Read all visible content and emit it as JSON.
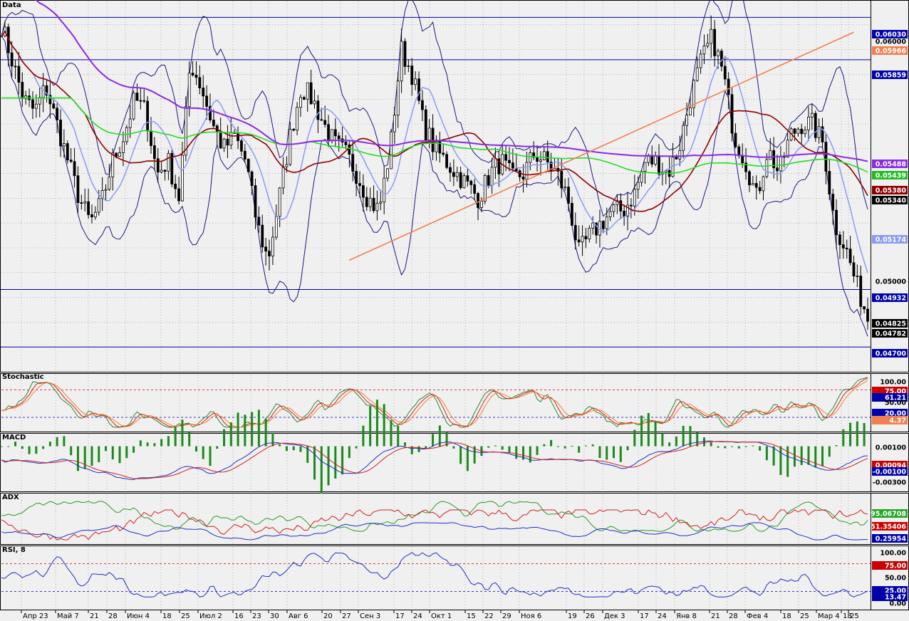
{
  "colors": {
    "background": "#f0f0f0",
    "candle": "#000000",
    "bollinger": "#1a1a7a",
    "ma_fast": "#8a9cf0",
    "ma_mid": "#8b0000",
    "ma_slow_green": "#22dd22",
    "ma_long_purple": "#8a2be2",
    "trendline": "#f08050",
    "hline": "#0000aa"
  },
  "chart_data": [
    {
      "pane": "price",
      "type": "candlestick",
      "title": "Data",
      "ylim": [
        0.046,
        0.061
      ],
      "y_ticks": [
        "0.06000",
        "0.05000"
      ],
      "horizontal_levels": [
        0.0603,
        0.05859,
        0.04932,
        0.047
      ],
      "price_tags": [
        {
          "label": "0.06030",
          "bg": "#0000aa",
          "fg": "#ffffff"
        },
        {
          "label": "0.06000",
          "bg": "",
          "fg": "#000000"
        },
        {
          "label": "0.05966",
          "bg": "#f08050",
          "fg": "#ffffff"
        },
        {
          "label": "0.05859",
          "bg": "#0000aa",
          "fg": "#ffffff"
        },
        {
          "label": "0.05488",
          "bg": "#8a2be2",
          "fg": "#ffffff"
        },
        {
          "label": "0.05439",
          "bg": "#22bb22",
          "fg": "#ffffff"
        },
        {
          "label": "0.05380",
          "bg": "#8b0000",
          "fg": "#ffffff"
        },
        {
          "label": "0.05340",
          "bg": "#000000",
          "fg": "#ffffff"
        },
        {
          "label": "0.05174",
          "bg": "#8a9cf0",
          "fg": "#ffffff"
        },
        {
          "label": "0.05000",
          "bg": "",
          "fg": "#000000"
        },
        {
          "label": "0.04932",
          "bg": "#0000aa",
          "fg": "#ffffff"
        },
        {
          "label": "0.04825",
          "bg": "#000000",
          "fg": "#ffffff"
        },
        {
          "label": "0.04782",
          "bg": "#000000",
          "fg": "#ffffff"
        },
        {
          "label": "0.04700",
          "bg": "#0000aa",
          "fg": "#ffffff"
        }
      ],
      "closes_anchor": [
        0.06,
        0.0585,
        0.057,
        0.0565,
        0.0575,
        0.056,
        0.0545,
        0.053,
        0.052,
        0.0528,
        0.0545,
        0.0555,
        0.057,
        0.0565,
        0.054,
        0.0545,
        0.053,
        0.0585,
        0.0575,
        0.056,
        0.055,
        0.0555,
        0.0545,
        0.052,
        0.0505,
        0.053,
        0.0555,
        0.0575,
        0.057,
        0.056,
        0.0552,
        0.0548,
        0.054,
        0.053,
        0.0525,
        0.055,
        0.059,
        0.058,
        0.056,
        0.055,
        0.0545,
        0.054,
        0.0535,
        0.053,
        0.054,
        0.0545,
        0.0538,
        0.054,
        0.0548,
        0.0545,
        0.054,
        0.053,
        0.0508,
        0.0515,
        0.052,
        0.0525,
        0.0525,
        0.0532,
        0.0545,
        0.0545,
        0.054,
        0.055,
        0.057,
        0.0585,
        0.0595,
        0.058,
        0.0555,
        0.0545,
        0.053,
        0.055,
        0.054,
        0.0555,
        0.056,
        0.056,
        0.0552,
        0.052,
        0.051,
        0.0495,
        0.0482
      ],
      "trendline": {
        "from": [
          0.0505,
          0.4
        ],
        "to": [
          0.0597,
          0.985
        ]
      }
    },
    {
      "pane": "stochastic",
      "type": "line",
      "title": "Stochastic",
      "ylim": [
        0,
        100
      ],
      "levels": [
        75,
        20
      ],
      "tags": [
        {
          "label": "100.00",
          "bg": "",
          "fg": "#000000"
        },
        {
          "label": "75.00",
          "bg": "#cc0000",
          "fg": "#ffffff"
        },
        {
          "label": "61.21",
          "bg": "#0000aa",
          "fg": "#ffffff"
        },
        {
          "label": "50.00",
          "bg": "",
          "fg": "#000000"
        },
        {
          "label": "20.00",
          "bg": "#0000aa",
          "fg": "#ffffff"
        },
        {
          "label": "4.37",
          "bg": "#f08050",
          "fg": "#ffffff"
        }
      ]
    },
    {
      "pane": "macd",
      "type": "line",
      "title": "MACD",
      "ylim": [
        -0.0035,
        0.0015
      ],
      "tags": [
        {
          "label": "0.00100",
          "bg": "",
          "fg": "#000000"
        },
        {
          "label": "0.00094",
          "bg": "#cc0000",
          "fg": "#ffffff"
        },
        {
          "label": "-0.00100",
          "bg": "#0000aa",
          "fg": "#ffffff"
        },
        {
          "label": "-0.00300",
          "bg": "",
          "fg": "#000000"
        }
      ]
    },
    {
      "pane": "adx",
      "type": "line",
      "title": "ADX",
      "ylim": [
        0,
        100
      ],
      "tags": [
        {
          "label": "95.06708",
          "bg": "#22aa22",
          "fg": "#ffffff"
        },
        {
          "label": "51.35406",
          "bg": "#cc0000",
          "fg": "#ffffff"
        },
        {
          "label": "0.25954",
          "bg": "#0000aa",
          "fg": "#ffffff"
        }
      ]
    },
    {
      "pane": "rsi",
      "type": "line",
      "title": "RSI, 8",
      "ylim": [
        0,
        100
      ],
      "levels": [
        75,
        25
      ],
      "tags": [
        {
          "label": "100.00",
          "bg": "",
          "fg": "#000000"
        },
        {
          "label": "75.00",
          "bg": "#cc0000",
          "fg": "#ffffff"
        },
        {
          "label": "50.00",
          "bg": "",
          "fg": "#000000"
        },
        {
          "label": "25.00",
          "bg": "#0000aa",
          "fg": "#ffffff"
        },
        {
          "label": "13.47",
          "bg": "#0000aa",
          "fg": "#ffffff"
        },
        {
          "label": "0.00",
          "bg": "",
          "fg": "#000000"
        }
      ]
    }
  ],
  "x_axis": {
    "labels": [
      "Апр 23",
      "Май 7",
      "21",
      "28",
      "Июн 4",
      "18",
      "25",
      "Июл 2",
      "16",
      "23",
      "30",
      "Авг 6",
      "20",
      "27",
      "Сен 3",
      "17",
      "24",
      "Окт 1",
      "15",
      "22",
      "29",
      "Ноя 6",
      "19",
      "26",
      "Дек 3",
      "17",
      "24",
      "Янв 8",
      "21",
      "28",
      "Фев 4",
      "18",
      "25",
      "Мар 4",
      "18",
      "25"
    ],
    "label_pos": [
      0.042,
      0.08,
      0.113,
      0.136,
      0.165,
      0.193,
      0.215,
      0.238,
      0.278,
      0.3,
      0.322,
      0.347,
      0.386,
      0.408,
      0.433,
      0.47,
      0.492,
      0.515,
      0.556,
      0.578,
      0.601,
      0.627,
      0.667,
      0.689,
      0.713,
      0.754,
      0.775,
      0.805,
      0.838,
      0.86,
      0.884,
      0.921,
      0.943,
      0.967,
      1.0,
      1.0
    ]
  }
}
